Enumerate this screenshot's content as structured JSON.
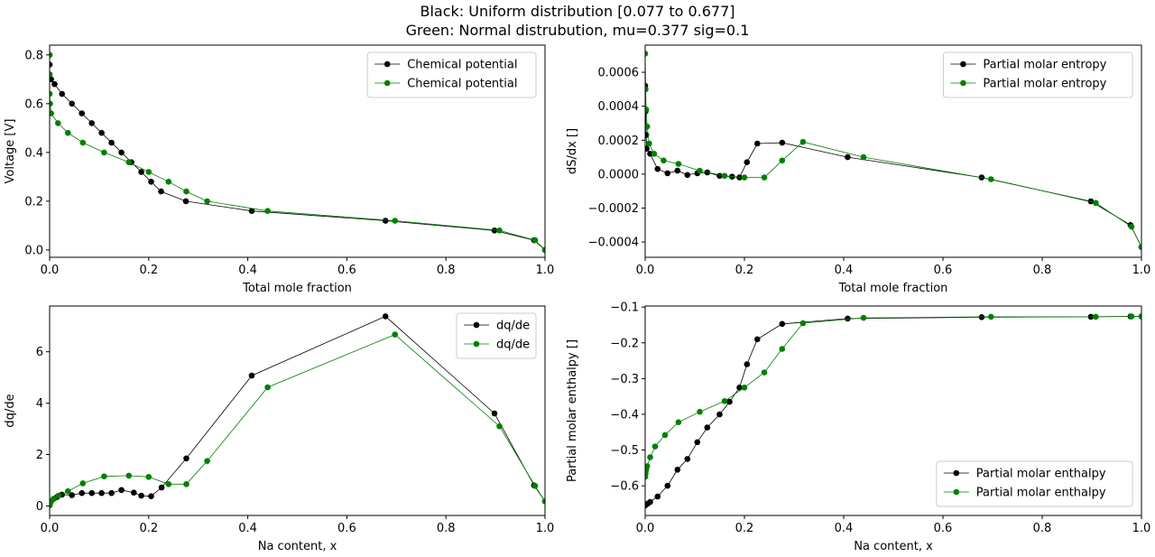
{
  "figure": {
    "title_line1": "Black: Uniform distribution [0.077 to 0.677]",
    "title_line2": "Green: Normal distrubution, mu=0.377 sig=0.1"
  },
  "colors": {
    "black": "#000000",
    "green": "#008000"
  },
  "chart_data": [
    {
      "type": "line",
      "id": "voltage",
      "xlabel": "Total mole fraction",
      "ylabel": "Voltage [V]",
      "xlim": [
        0,
        1
      ],
      "ylim": [
        -0.03,
        0.84
      ],
      "xticks": [
        "0.0",
        "0.2",
        "0.4",
        "0.6",
        "0.8",
        "1.0"
      ],
      "yticks": [
        "0.0",
        "0.2",
        "0.4",
        "0.6",
        "0.8"
      ],
      "legend": "top-right",
      "series": [
        {
          "name": "Chemical potential",
          "color": "black",
          "x": [
            0.0,
            0.0,
            0.0,
            0.003,
            0.01,
            0.025,
            0.045,
            0.065,
            0.085,
            0.105,
            0.125,
            0.145,
            0.165,
            0.185,
            0.205,
            0.225,
            0.275,
            0.408,
            0.678,
            0.898,
            0.978,
            1.0
          ],
          "y": [
            0.8,
            0.76,
            0.72,
            0.7,
            0.68,
            0.64,
            0.6,
            0.56,
            0.52,
            0.48,
            0.44,
            0.4,
            0.36,
            0.32,
            0.28,
            0.24,
            0.2,
            0.16,
            0.12,
            0.08,
            0.04,
            0.0
          ]
        },
        {
          "name": "Chemical potential",
          "color": "green",
          "x": [
            0.0,
            0.0,
            0.0,
            0.001,
            0.003,
            0.017,
            0.037,
            0.067,
            0.11,
            0.16,
            0.2,
            0.24,
            0.276,
            0.318,
            0.44,
            0.697,
            0.908,
            0.98,
            1.0
          ],
          "y": [
            0.8,
            0.72,
            0.64,
            0.6,
            0.56,
            0.52,
            0.48,
            0.44,
            0.4,
            0.36,
            0.32,
            0.28,
            0.24,
            0.2,
            0.16,
            0.12,
            0.08,
            0.04,
            0.0
          ]
        }
      ]
    },
    {
      "type": "line",
      "id": "entropy",
      "xlabel": "Total mole fraction",
      "ylabel": "dS/dx []",
      "xlim": [
        0,
        1
      ],
      "ylim": [
        -0.00049,
        0.00076
      ],
      "xticks": [
        "0.0",
        "0.2",
        "0.4",
        "0.6",
        "0.8",
        "1.0"
      ],
      "yticks": [
        "−0.0004",
        "−0.0002",
        "0.0000",
        "0.0002",
        "0.0004",
        "0.0006"
      ],
      "ytick_values": [
        -0.0004,
        -0.0002,
        0.0,
        0.0002,
        0.0004,
        0.0006
      ],
      "legend": "top-right",
      "series": [
        {
          "name": "Partial molar entropy",
          "color": "black",
          "x": [
            0.0,
            0.001,
            0.002,
            0.003,
            0.01,
            0.025,
            0.045,
            0.065,
            0.085,
            0.105,
            0.125,
            0.15,
            0.175,
            0.19,
            0.205,
            0.226,
            0.276,
            0.408,
            0.678,
            0.898,
            0.978,
            1.0
          ],
          "y": [
            0.00052,
            0.00037,
            0.00023,
            0.00015,
            0.00012,
            3e-05,
            5e-06,
            2e-05,
            -5e-06,
            5e-06,
            1e-05,
            -1e-05,
            -1.5e-05,
            -2e-05,
            7e-05,
            0.00018,
            0.000185,
            0.0001,
            -2e-05,
            -0.00016,
            -0.0003,
            -0.00043
          ]
        },
        {
          "name": "Partial molar entropy",
          "color": "green",
          "x": [
            0.0,
            0.001,
            0.002,
            0.004,
            0.008,
            0.018,
            0.037,
            0.067,
            0.11,
            0.16,
            0.2,
            0.24,
            0.276,
            0.318,
            0.44,
            0.697,
            0.908,
            0.98,
            1.0
          ],
          "y": [
            0.00071,
            0.0005,
            0.00038,
            0.00028,
            0.00018,
            0.00012,
            8e-05,
            6e-05,
            2e-05,
            -1e-05,
            -2e-05,
            -2e-05,
            8e-05,
            0.00019,
            0.0001,
            -3e-05,
            -0.00017,
            -0.00031,
            -0.00043
          ]
        }
      ]
    },
    {
      "type": "line",
      "id": "dqde",
      "xlabel": "Na content, x",
      "ylabel": "dq/de",
      "xlim": [
        0,
        1
      ],
      "ylim": [
        -0.37,
        7.78
      ],
      "xticks": [
        "0.0",
        "0.2",
        "0.4",
        "0.6",
        "0.8",
        "1.0"
      ],
      "yticks": [
        "0",
        "2",
        "4",
        "6"
      ],
      "ytick_values": [
        0,
        2,
        4,
        6
      ],
      "legend": "top-right",
      "series": [
        {
          "name": "dq/de",
          "color": "black",
          "x": [
            0.0,
            0.001,
            0.003,
            0.008,
            0.015,
            0.025,
            0.045,
            0.065,
            0.085,
            0.105,
            0.125,
            0.145,
            0.17,
            0.185,
            0.205,
            0.226,
            0.276,
            0.408,
            0.678,
            0.898,
            0.978,
            1.0
          ],
          "y": [
            0.05,
            0.1,
            0.18,
            0.28,
            0.35,
            0.44,
            0.42,
            0.5,
            0.5,
            0.5,
            0.5,
            0.62,
            0.52,
            0.4,
            0.38,
            0.72,
            1.85,
            5.07,
            7.38,
            3.6,
            0.8,
            0.18
          ]
        },
        {
          "name": "dq/de",
          "color": "green",
          "x": [
            0.0,
            0.001,
            0.003,
            0.008,
            0.018,
            0.037,
            0.067,
            0.11,
            0.16,
            0.2,
            0.24,
            0.276,
            0.318,
            0.44,
            0.697,
            0.908,
            0.98,
            1.0
          ],
          "y": [
            0.02,
            0.1,
            0.18,
            0.28,
            0.4,
            0.57,
            0.88,
            1.15,
            1.18,
            1.13,
            0.85,
            0.85,
            1.75,
            4.62,
            6.67,
            3.1,
            0.78,
            0.18
          ]
        }
      ]
    },
    {
      "type": "line",
      "id": "enthalpy",
      "xlabel": "Na content, x",
      "ylabel": "Partial molar enthalpy []",
      "xlim": [
        0,
        1
      ],
      "ylim": [
        -0.683,
        -0.097
      ],
      "xticks": [
        "0.0",
        "0.2",
        "0.4",
        "0.6",
        "0.8",
        "1.0"
      ],
      "yticks": [
        "−0.6",
        "−0.5",
        "−0.4",
        "−0.3",
        "−0.2",
        "−0.1"
      ],
      "ytick_values": [
        -0.6,
        -0.5,
        -0.4,
        -0.3,
        -0.2,
        -0.1
      ],
      "legend": "bottom-right",
      "series": [
        {
          "name": "Partial molar enthalpy",
          "color": "black",
          "x": [
            0.0,
            0.005,
            0.01,
            0.025,
            0.045,
            0.065,
            0.085,
            0.105,
            0.125,
            0.15,
            0.17,
            0.19,
            0.205,
            0.226,
            0.276,
            0.408,
            0.678,
            0.898,
            0.978,
            1.0
          ],
          "y": [
            -0.655,
            -0.65,
            -0.645,
            -0.63,
            -0.6,
            -0.555,
            -0.525,
            -0.478,
            -0.437,
            -0.4,
            -0.365,
            -0.325,
            -0.26,
            -0.19,
            -0.147,
            -0.132,
            -0.128,
            -0.127,
            -0.126,
            -0.126
          ]
        },
        {
          "name": "Partial molar enthalpy",
          "color": "green",
          "x": [
            0.0,
            0.001,
            0.002,
            0.004,
            0.01,
            0.02,
            0.04,
            0.067,
            0.11,
            0.16,
            0.2,
            0.24,
            0.276,
            0.318,
            0.44,
            0.697,
            0.908,
            0.98,
            1.0
          ],
          "y": [
            -0.575,
            -0.565,
            -0.555,
            -0.545,
            -0.52,
            -0.49,
            -0.458,
            -0.422,
            -0.393,
            -0.363,
            -0.325,
            -0.283,
            -0.217,
            -0.145,
            -0.13,
            -0.127,
            -0.127,
            -0.126,
            -0.126
          ]
        }
      ]
    }
  ]
}
